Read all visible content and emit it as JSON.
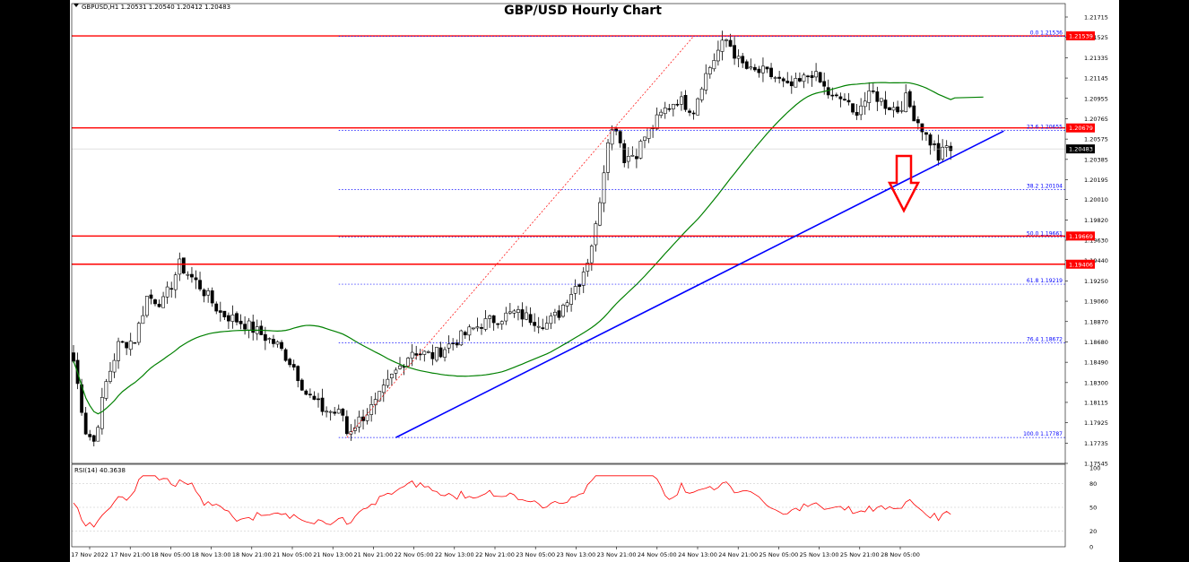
{
  "chart_data": {
    "type": "candlestick",
    "title": "GBP/USD Hourly Chart",
    "symbol_info": "GBPUSD,H1  1.20531 1.20540 1.20412 1.20483",
    "y_ticks": [
      "1.21715",
      "1.21525",
      "1.21335",
      "1.21145",
      "1.20955",
      "1.20765",
      "1.20575",
      "1.20385",
      "1.20195",
      "1.20010",
      "1.19820",
      "1.19630",
      "1.19440",
      "1.19250",
      "1.19060",
      "1.18870",
      "1.18680",
      "1.18490",
      "1.18300",
      "1.18115",
      "1.17925",
      "1.17735",
      "1.17545"
    ],
    "y_range": [
      1.17545,
      1.21715
    ],
    "x_labels": [
      "17 Nov 2022",
      "17 Nov 21:00",
      "18 Nov 05:00",
      "18 Nov 13:00",
      "18 Nov 21:00",
      "21 Nov 05:00",
      "21 Nov 13:00",
      "21 Nov 21:00",
      "22 Nov 05:00",
      "22 Nov 13:00",
      "22 Nov 21:00",
      "23 Nov 05:00",
      "23 Nov 13:00",
      "23 Nov 21:00",
      "24 Nov 05:00",
      "24 Nov 13:00",
      "24 Nov 21:00",
      "25 Nov 05:00",
      "25 Nov 13:00",
      "25 Nov 21:00",
      "28 Nov 05:00"
    ],
    "current_price": "1.20483",
    "horizontal_levels": [
      {
        "price": 1.21539,
        "label": "1.21539",
        "color": "#ff0000"
      },
      {
        "price": 1.20679,
        "label": "1.20679",
        "color": "#ff0000"
      },
      {
        "price": 1.19669,
        "label": "1.19669",
        "color": "#ff0000"
      },
      {
        "price": 1.19406,
        "label": "1.19406",
        "color": "#ff0000"
      }
    ],
    "fibonacci": [
      {
        "label": "0.0 1.21536",
        "price": 1.21536
      },
      {
        "label": "23.6 1.20655",
        "price": 1.20655
      },
      {
        "label": "38.2 1.20104",
        "price": 1.20104
      },
      {
        "label": "50.0 1.19661",
        "price": 1.19661
      },
      {
        "label": "61.8 1.19219",
        "price": 1.19219
      },
      {
        "label": "76.4 1.18672",
        "price": 1.18672
      },
      {
        "label": "100.0 1.17787",
        "price": 1.17787
      }
    ],
    "trendline": {
      "from": [
        79,
        1.17787
      ],
      "to": [
        228,
        1.2065
      ],
      "color": "#0000ff"
    },
    "moving_average_color": "#008000",
    "rsi": {
      "label": "RSI(14) 40.3638",
      "levels": [
        100,
        80,
        50,
        20,
        0
      ],
      "color": "#ff0000"
    },
    "colors": {
      "bull": "#ffffff",
      "bear": "#000000",
      "level": "#ff0000",
      "trend": "#0000ff",
      "ma": "#008000",
      "rsi": "#ff0000",
      "arrow": "#ff0000"
    }
  }
}
